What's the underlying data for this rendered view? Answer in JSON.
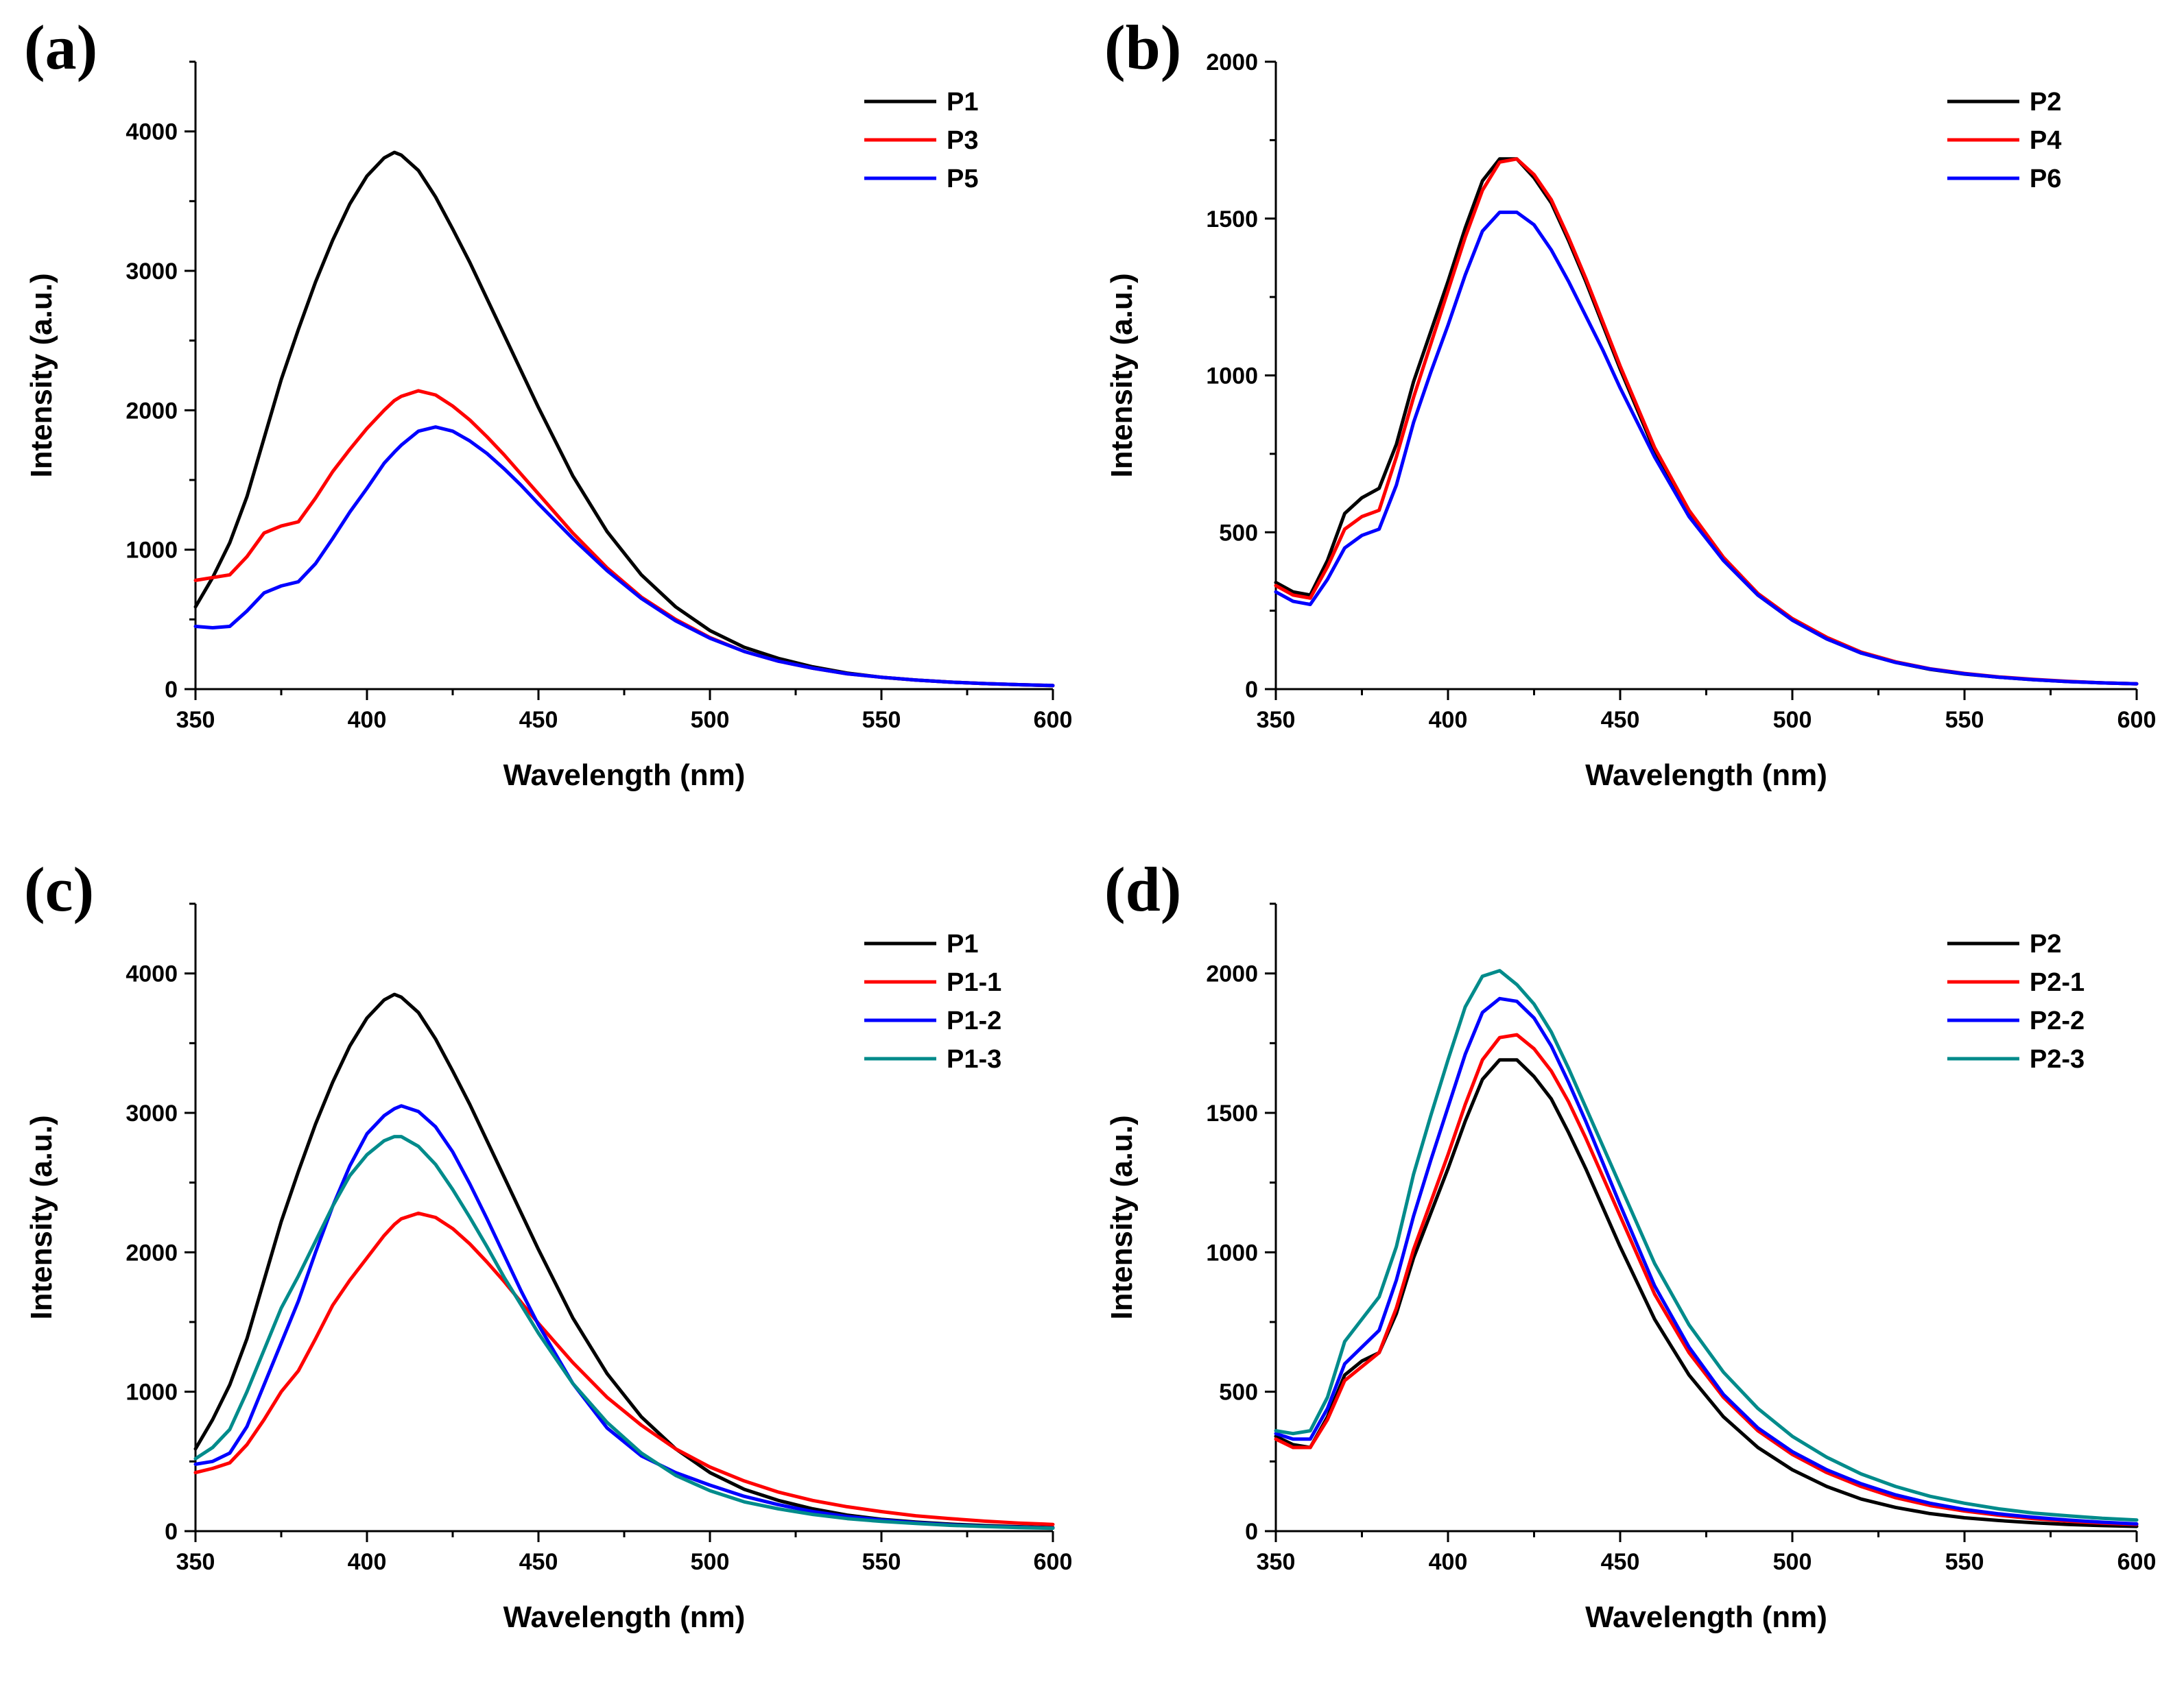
{
  "figure": {
    "panel_count": 4
  },
  "chart_data": [
    {
      "type": "line",
      "panel_label": "(a)",
      "xlabel": "Wavelength (nm)",
      "ylabel": "Intensity (a.u.)",
      "xlim": [
        350,
        600
      ],
      "ylim": [
        0,
        4500
      ],
      "xticks": [
        350,
        400,
        450,
        500,
        550,
        600
      ],
      "yticks": [
        0,
        1000,
        2000,
        3000,
        4000
      ],
      "legend": "top-right",
      "x": [
        350,
        355,
        360,
        365,
        370,
        375,
        380,
        385,
        390,
        395,
        400,
        405,
        408,
        410,
        415,
        420,
        425,
        430,
        435,
        440,
        445,
        450,
        460,
        470,
        480,
        490,
        500,
        510,
        520,
        530,
        540,
        550,
        560,
        570,
        580,
        590,
        600
      ],
      "series": [
        {
          "name": "P1",
          "color": "#000000",
          "values": [
            590,
            800,
            1050,
            1380,
            1800,
            2220,
            2580,
            2920,
            3220,
            3480,
            3680,
            3810,
            3850,
            3830,
            3720,
            3530,
            3300,
            3060,
            2800,
            2540,
            2280,
            2020,
            1530,
            1130,
            820,
            590,
            420,
            300,
            220,
            160,
            115,
            85,
            65,
            50,
            40,
            32,
            25
          ]
        },
        {
          "name": "P3",
          "color": "#ff0000",
          "values": [
            780,
            800,
            820,
            950,
            1120,
            1170,
            1200,
            1370,
            1560,
            1720,
            1870,
            2000,
            2070,
            2100,
            2140,
            2110,
            2030,
            1930,
            1810,
            1680,
            1540,
            1400,
            1120,
            870,
            660,
            500,
            370,
            270,
            200,
            150,
            110,
            85,
            65,
            50,
            40,
            32,
            26
          ]
        },
        {
          "name": "P5",
          "color": "#0000ff",
          "values": [
            450,
            440,
            450,
            560,
            690,
            740,
            770,
            900,
            1080,
            1270,
            1440,
            1620,
            1700,
            1750,
            1850,
            1880,
            1850,
            1780,
            1690,
            1580,
            1460,
            1330,
            1080,
            850,
            650,
            490,
            365,
            270,
            200,
            150,
            110,
            85,
            65,
            50,
            40,
            32,
            26
          ]
        }
      ]
    },
    {
      "type": "line",
      "panel_label": "(b)",
      "xlabel": "Wavelength (nm)",
      "ylabel": "Intensity (a.u.)",
      "xlim": [
        350,
        600
      ],
      "ylim": [
        0,
        2000
      ],
      "xticks": [
        350,
        400,
        450,
        500,
        550,
        600
      ],
      "yticks": [
        0,
        500,
        1000,
        1500,
        2000
      ],
      "legend": "top-right",
      "x": [
        350,
        355,
        360,
        365,
        370,
        375,
        380,
        385,
        390,
        395,
        400,
        405,
        410,
        415,
        420,
        425,
        430,
        435,
        440,
        445,
        450,
        460,
        470,
        480,
        490,
        500,
        510,
        520,
        530,
        540,
        550,
        560,
        570,
        580,
        590,
        600
      ],
      "series": [
        {
          "name": "P2",
          "color": "#000000",
          "values": [
            340,
            310,
            300,
            410,
            560,
            610,
            640,
            780,
            980,
            1140,
            1300,
            1470,
            1620,
            1690,
            1690,
            1630,
            1550,
            1430,
            1300,
            1160,
            1020,
            760,
            560,
            410,
            300,
            220,
            160,
            115,
            85,
            63,
            48,
            38,
            30,
            24,
            20,
            17
          ]
        },
        {
          "name": "P4",
          "color": "#ff0000",
          "values": [
            330,
            300,
            290,
            390,
            510,
            550,
            570,
            740,
            930,
            1100,
            1270,
            1440,
            1590,
            1680,
            1690,
            1640,
            1560,
            1440,
            1310,
            1170,
            1030,
            770,
            570,
            420,
            305,
            225,
            165,
            118,
            87,
            65,
            50,
            39,
            31,
            25,
            20,
            17
          ]
        },
        {
          "name": "P6",
          "color": "#0000ff",
          "values": [
            310,
            280,
            270,
            350,
            450,
            490,
            510,
            650,
            850,
            1010,
            1160,
            1320,
            1460,
            1520,
            1520,
            1480,
            1400,
            1300,
            1190,
            1080,
            960,
            740,
            550,
            410,
            300,
            220,
            160,
            115,
            85,
            64,
            49,
            38,
            30,
            24,
            20,
            17
          ]
        }
      ]
    },
    {
      "type": "line",
      "panel_label": "(c)",
      "xlabel": "Wavelength (nm)",
      "ylabel": "Intensity (a.u.)",
      "xlim": [
        350,
        600
      ],
      "ylim": [
        0,
        4500
      ],
      "xticks": [
        350,
        400,
        450,
        500,
        550,
        600
      ],
      "yticks": [
        0,
        1000,
        2000,
        3000,
        4000
      ],
      "legend": "top-right",
      "x": [
        350,
        355,
        360,
        365,
        370,
        375,
        380,
        385,
        390,
        395,
        400,
        405,
        408,
        410,
        415,
        420,
        425,
        430,
        435,
        440,
        445,
        450,
        460,
        470,
        480,
        490,
        500,
        510,
        520,
        530,
        540,
        550,
        560,
        570,
        580,
        590,
        600
      ],
      "series": [
        {
          "name": "P1",
          "color": "#000000",
          "values": [
            590,
            800,
            1050,
            1380,
            1800,
            2220,
            2580,
            2920,
            3220,
            3480,
            3680,
            3810,
            3850,
            3830,
            3720,
            3530,
            3300,
            3060,
            2800,
            2540,
            2280,
            2020,
            1530,
            1130,
            820,
            590,
            420,
            300,
            220,
            160,
            115,
            85,
            65,
            50,
            40,
            32,
            25
          ]
        },
        {
          "name": "P1-1",
          "color": "#ff0000",
          "values": [
            420,
            450,
            490,
            620,
            800,
            1000,
            1150,
            1380,
            1620,
            1800,
            1960,
            2120,
            2200,
            2240,
            2280,
            2250,
            2170,
            2060,
            1930,
            1790,
            1640,
            1490,
            1210,
            960,
            760,
            590,
            460,
            360,
            280,
            220,
            175,
            140,
            110,
            90,
            72,
            58,
            48
          ]
        },
        {
          "name": "P1-2",
          "color": "#0000ff",
          "values": [
            480,
            500,
            560,
            750,
            1050,
            1350,
            1650,
            2000,
            2330,
            2620,
            2850,
            2980,
            3030,
            3050,
            3010,
            2900,
            2720,
            2490,
            2240,
            1980,
            1720,
            1480,
            1060,
            740,
            540,
            420,
            330,
            250,
            190,
            140,
            105,
            80,
            60,
            45,
            35,
            28,
            22
          ]
        },
        {
          "name": "P1-3",
          "color": "#008b8b",
          "values": [
            520,
            600,
            730,
            1000,
            1300,
            1600,
            1830,
            2080,
            2330,
            2550,
            2700,
            2800,
            2830,
            2830,
            2760,
            2630,
            2450,
            2250,
            2040,
            1820,
            1620,
            1420,
            1060,
            780,
            560,
            400,
            290,
            210,
            160,
            120,
            90,
            70,
            55,
            42,
            33,
            26,
            21
          ]
        }
      ]
    },
    {
      "type": "line",
      "panel_label": "(d)",
      "xlabel": "Wavelength (nm)",
      "ylabel": "Intensity (a.u.)",
      "xlim": [
        350,
        600
      ],
      "ylim": [
        0,
        2250
      ],
      "xticks": [
        350,
        400,
        450,
        500,
        550,
        600
      ],
      "yticks": [
        0,
        500,
        1000,
        1500,
        2000
      ],
      "legend": "top-right",
      "x": [
        350,
        355,
        360,
        365,
        370,
        375,
        380,
        385,
        390,
        395,
        400,
        405,
        410,
        415,
        420,
        425,
        430,
        435,
        440,
        445,
        450,
        460,
        470,
        480,
        490,
        500,
        510,
        520,
        530,
        540,
        550,
        560,
        570,
        580,
        590,
        600
      ],
      "series": [
        {
          "name": "P2",
          "color": "#000000",
          "values": [
            340,
            310,
            300,
            410,
            560,
            610,
            640,
            780,
            980,
            1140,
            1300,
            1470,
            1620,
            1690,
            1690,
            1630,
            1550,
            1430,
            1300,
            1160,
            1020,
            760,
            560,
            410,
            300,
            220,
            160,
            115,
            85,
            63,
            48,
            38,
            30,
            24,
            20,
            17
          ]
        },
        {
          "name": "P2-1",
          "color": "#ff0000",
          "values": [
            330,
            300,
            300,
            400,
            540,
            590,
            640,
            800,
            1010,
            1180,
            1350,
            1530,
            1690,
            1770,
            1780,
            1730,
            1650,
            1540,
            1410,
            1270,
            1130,
            850,
            640,
            480,
            360,
            275,
            210,
            160,
            120,
            92,
            72,
            57,
            45,
            36,
            29,
            24
          ]
        },
        {
          "name": "P2-2",
          "color": "#0000ff",
          "values": [
            350,
            330,
            330,
            440,
            600,
            660,
            720,
            900,
            1130,
            1330,
            1520,
            1710,
            1860,
            1910,
            1900,
            1840,
            1740,
            1610,
            1470,
            1320,
            1170,
            880,
            660,
            490,
            370,
            285,
            220,
            170,
            130,
            100,
            78,
            62,
            50,
            40,
            32,
            26
          ]
        },
        {
          "name": "P2-3",
          "color": "#008b8b",
          "values": [
            360,
            350,
            360,
            480,
            680,
            760,
            840,
            1020,
            1280,
            1490,
            1690,
            1880,
            1990,
            2010,
            1960,
            1890,
            1790,
            1660,
            1520,
            1380,
            1240,
            960,
            740,
            570,
            440,
            340,
            265,
            205,
            160,
            125,
            100,
            80,
            65,
            55,
            46,
            40
          ]
        }
      ]
    }
  ]
}
